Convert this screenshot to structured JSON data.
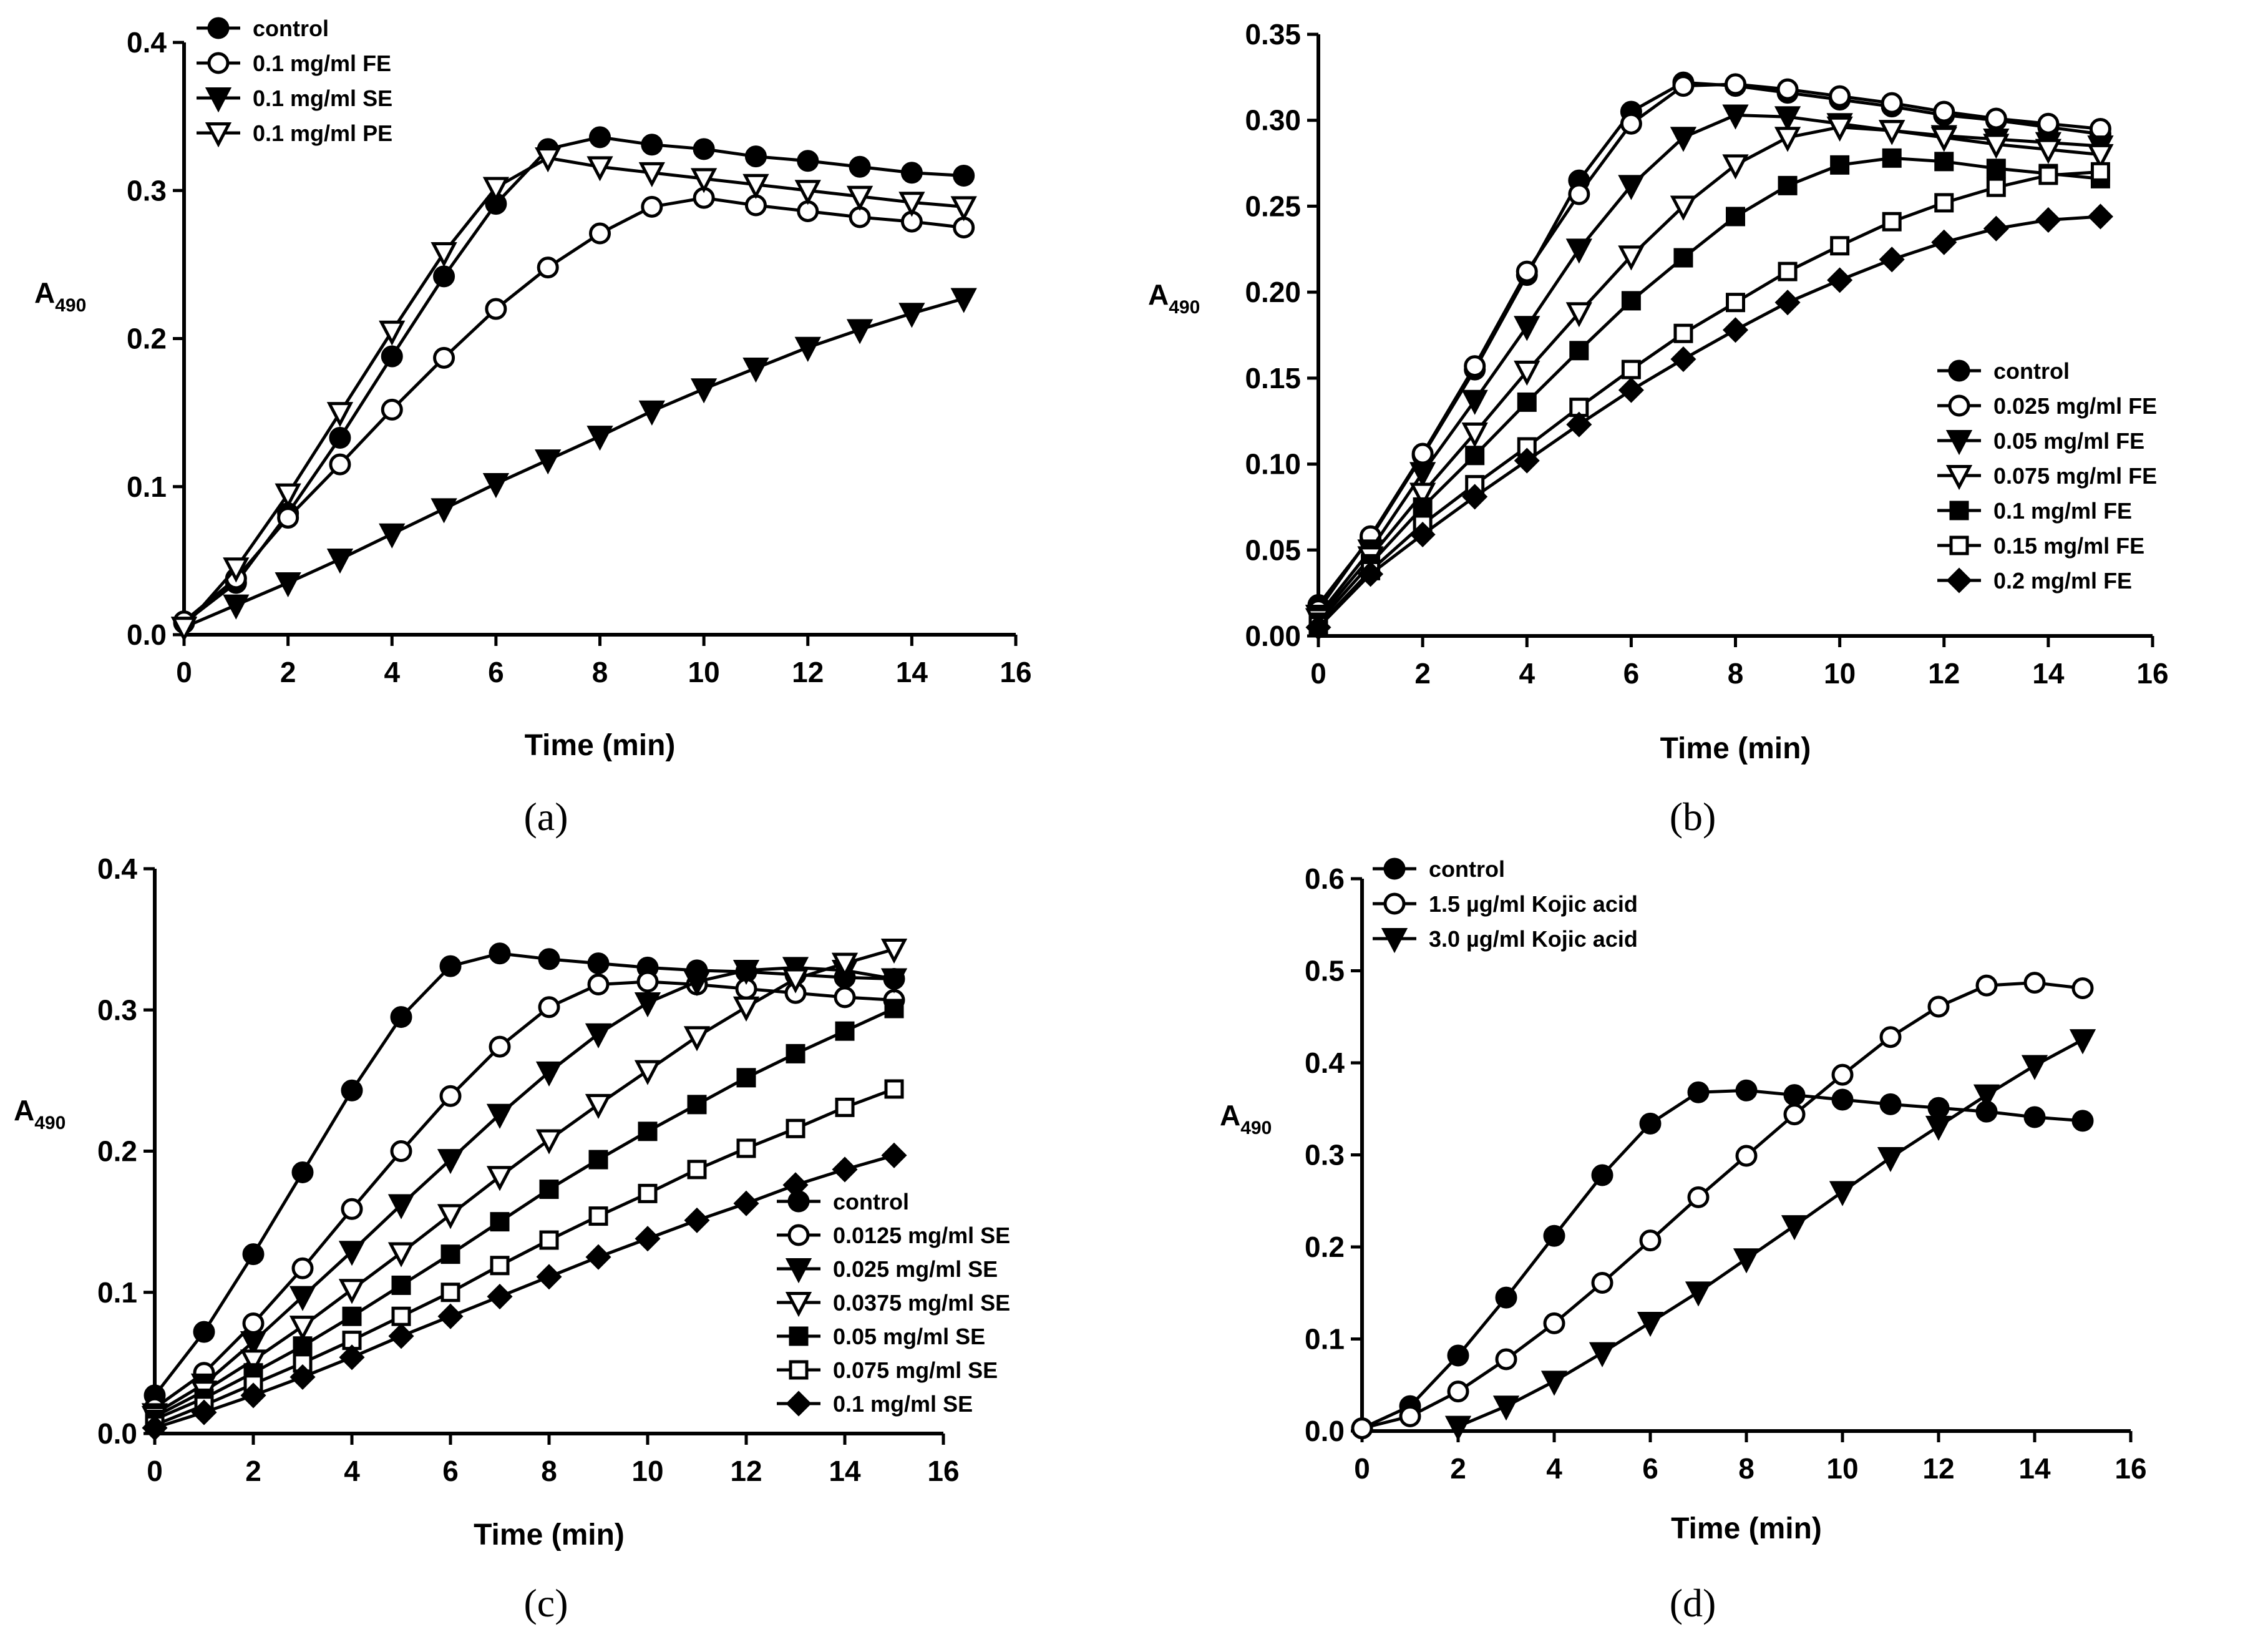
{
  "figure": {
    "panels": [
      "(a)",
      "(b)",
      "(c)",
      "(d)"
    ]
  },
  "chart_data": [
    {
      "type": "line",
      "panel": "(a)",
      "xlabel": "Time (min)",
      "ylabel": "A",
      "ylabel_sub": "490",
      "xlim": [
        0,
        16
      ],
      "ylim": [
        0,
        0.4
      ],
      "xticks": [
        0,
        2,
        4,
        6,
        8,
        10,
        12,
        14,
        16
      ],
      "yticks": [
        0,
        0.1,
        0.2,
        0.3,
        0.4
      ],
      "xtick_labels": [
        "0",
        "2",
        "4",
        "6",
        "8",
        "10",
        "12",
        "14",
        "16"
      ],
      "ytick_labels": [
        "0.0",
        "0.1",
        "0.2",
        "0.3",
        "0.4"
      ],
      "legend_position": "top-left",
      "x": [
        0,
        1,
        2,
        3,
        4,
        5,
        6,
        7,
        8,
        9,
        10,
        11,
        12,
        13,
        14,
        15
      ],
      "series": [
        {
          "name": "control",
          "marker": "circle-filled",
          "values": [
            0.008,
            0.035,
            0.082,
            0.133,
            0.188,
            0.242,
            0.291,
            0.328,
            0.336,
            0.331,
            0.328,
            0.323,
            0.32,
            0.316,
            0.312,
            0.31
          ]
        },
        {
          "name": "0.1 mg/ml FE",
          "marker": "circle-open",
          "values": [
            0.009,
            0.038,
            0.079,
            0.115,
            0.152,
            0.187,
            0.22,
            0.248,
            0.271,
            0.289,
            0.295,
            0.29,
            0.286,
            0.282,
            0.279,
            0.275
          ]
        },
        {
          "name": "0.1 mg/ml SE",
          "marker": "triangle-down-filled",
          "values": [
            0.005,
            0.02,
            0.035,
            0.051,
            0.068,
            0.085,
            0.102,
            0.118,
            0.134,
            0.151,
            0.166,
            0.18,
            0.194,
            0.206,
            0.217,
            0.227
          ]
        },
        {
          "name": "0.1 mg/ml PE",
          "marker": "triangle-down-open",
          "values": [
            0.005,
            0.045,
            0.095,
            0.15,
            0.205,
            0.258,
            0.302,
            0.322,
            0.316,
            0.312,
            0.308,
            0.304,
            0.3,
            0.296,
            0.292,
            0.289
          ]
        }
      ]
    },
    {
      "type": "line",
      "panel": "(b)",
      "xlabel": "Time (min)",
      "ylabel": "A",
      "ylabel_sub": "490",
      "xlim": [
        0,
        16
      ],
      "ylim": [
        0,
        0.35
      ],
      "xticks": [
        0,
        2,
        4,
        6,
        8,
        10,
        12,
        14,
        16
      ],
      "yticks": [
        0,
        0.05,
        0.1,
        0.15,
        0.2,
        0.25,
        0.3,
        0.35
      ],
      "xtick_labels": [
        "0",
        "2",
        "4",
        "6",
        "8",
        "10",
        "12",
        "14",
        "16"
      ],
      "ytick_labels": [
        "0.00",
        "0.05",
        "0.10",
        "0.15",
        "0.20",
        "0.25",
        "0.30",
        "0.35"
      ],
      "legend_position": "bottom-right",
      "x": [
        0,
        1,
        2,
        3,
        4,
        5,
        6,
        7,
        8,
        9,
        10,
        11,
        12,
        13,
        14,
        15
      ],
      "series": [
        {
          "name": "control",
          "marker": "circle-filled",
          "values": [
            0.018,
            0.057,
            0.105,
            0.155,
            0.21,
            0.265,
            0.305,
            0.322,
            0.32,
            0.316,
            0.312,
            0.308,
            0.303,
            0.3,
            0.296,
            0.292
          ]
        },
        {
          "name": "0.025 mg/ml FE",
          "marker": "circle-open",
          "values": [
            0.015,
            0.058,
            0.106,
            0.157,
            0.212,
            0.257,
            0.298,
            0.32,
            0.321,
            0.318,
            0.314,
            0.31,
            0.305,
            0.301,
            0.298,
            0.295
          ]
        },
        {
          "name": "0.05 mg/ml FE",
          "marker": "triangle-down-filled",
          "values": [
            0.012,
            0.05,
            0.095,
            0.137,
            0.18,
            0.225,
            0.262,
            0.29,
            0.303,
            0.302,
            0.298,
            0.294,
            0.291,
            0.289,
            0.287,
            0.285
          ]
        },
        {
          "name": "0.075 mg/ml FE",
          "marker": "triangle-down-open",
          "values": [
            0.01,
            0.046,
            0.083,
            0.118,
            0.154,
            0.188,
            0.221,
            0.25,
            0.274,
            0.29,
            0.296,
            0.294,
            0.29,
            0.286,
            0.283,
            0.28
          ]
        },
        {
          "name": "0.1 mg/ml FE",
          "marker": "square-filled",
          "values": [
            0.008,
            0.042,
            0.075,
            0.105,
            0.136,
            0.166,
            0.195,
            0.22,
            0.244,
            0.262,
            0.274,
            0.278,
            0.276,
            0.272,
            0.269,
            0.266
          ]
        },
        {
          "name": "0.15 mg/ml FE",
          "marker": "square-open",
          "values": [
            0.006,
            0.038,
            0.065,
            0.088,
            0.11,
            0.133,
            0.155,
            0.176,
            0.194,
            0.212,
            0.227,
            0.241,
            0.252,
            0.261,
            0.268,
            0.27
          ]
        },
        {
          "name": "0.2 mg/ml FE",
          "marker": "diamond-filled",
          "values": [
            0.005,
            0.036,
            0.059,
            0.081,
            0.102,
            0.123,
            0.143,
            0.161,
            0.178,
            0.194,
            0.207,
            0.219,
            0.229,
            0.237,
            0.242,
            0.244
          ]
        }
      ]
    },
    {
      "type": "line",
      "panel": "(c)",
      "xlabel": "Time (min)",
      "ylabel": "A",
      "ylabel_sub": "490",
      "xlim": [
        0,
        16
      ],
      "ylim": [
        0,
        0.4
      ],
      "xticks": [
        0,
        2,
        4,
        6,
        8,
        10,
        12,
        14,
        16
      ],
      "yticks": [
        0,
        0.1,
        0.2,
        0.3,
        0.4
      ],
      "xtick_labels": [
        "0",
        "2",
        "4",
        "6",
        "8",
        "10",
        "12",
        "14",
        "16"
      ],
      "ytick_labels": [
        "0.0",
        "0.1",
        "0.2",
        "0.3",
        "0.4"
      ],
      "legend_position": "bottom-right",
      "x": [
        0,
        1,
        2,
        3,
        4,
        5,
        6,
        7,
        8,
        9,
        10,
        11,
        12,
        13,
        14,
        15
      ],
      "series": [
        {
          "name": "control",
          "marker": "circle-filled",
          "values": [
            0.027,
            0.072,
            0.127,
            0.185,
            0.243,
            0.295,
            0.331,
            0.34,
            0.336,
            0.333,
            0.33,
            0.328,
            0.327,
            0.325,
            0.323,
            0.322
          ]
        },
        {
          "name": "0.0125 mg/ml SE",
          "marker": "circle-open",
          "values": [
            0.018,
            0.043,
            0.078,
            0.117,
            0.159,
            0.2,
            0.239,
            0.274,
            0.302,
            0.318,
            0.32,
            0.318,
            0.315,
            0.312,
            0.309,
            0.307
          ]
        },
        {
          "name": "0.025 mg/ml SE",
          "marker": "triangle-down-filled",
          "values": [
            0.014,
            0.035,
            0.065,
            0.097,
            0.129,
            0.162,
            0.194,
            0.226,
            0.256,
            0.283,
            0.305,
            0.32,
            0.328,
            0.33,
            0.328,
            0.322
          ]
        },
        {
          "name": "0.0375 mg/ml SE",
          "marker": "triangle-down-open",
          "values": [
            0.012,
            0.03,
            0.052,
            0.076,
            0.102,
            0.128,
            0.155,
            0.182,
            0.208,
            0.233,
            0.257,
            0.281,
            0.302,
            0.322,
            0.333,
            0.343
          ]
        },
        {
          "name": "0.05 mg/ml SE",
          "marker": "square-filled",
          "values": [
            0.01,
            0.025,
            0.043,
            0.062,
            0.083,
            0.105,
            0.127,
            0.15,
            0.173,
            0.194,
            0.214,
            0.233,
            0.252,
            0.269,
            0.285,
            0.301
          ]
        },
        {
          "name": "0.075 mg/ml SE",
          "marker": "square-open",
          "values": [
            0.006,
            0.02,
            0.035,
            0.05,
            0.066,
            0.083,
            0.1,
            0.119,
            0.137,
            0.154,
            0.17,
            0.187,
            0.202,
            0.216,
            0.231,
            0.244
          ]
        },
        {
          "name": "0.1 mg/ml SE",
          "marker": "diamond-filled",
          "values": [
            0.004,
            0.015,
            0.027,
            0.04,
            0.054,
            0.069,
            0.083,
            0.097,
            0.111,
            0.125,
            0.138,
            0.151,
            0.163,
            0.176,
            0.187,
            0.197
          ]
        }
      ]
    },
    {
      "type": "line",
      "panel": "(d)",
      "xlabel": "Time (min)",
      "ylabel": "A",
      "ylabel_sub": "490",
      "xlim": [
        0,
        16
      ],
      "ylim": [
        0,
        0.6
      ],
      "xticks": [
        0,
        2,
        4,
        6,
        8,
        10,
        12,
        14,
        16
      ],
      "yticks": [
        0,
        0.1,
        0.2,
        0.3,
        0.4,
        0.5,
        0.6
      ],
      "xtick_labels": [
        "0",
        "2",
        "4",
        "6",
        "8",
        "10",
        "12",
        "14",
        "16"
      ],
      "ytick_labels": [
        "0.0",
        "0.1",
        "0.2",
        "0.3",
        "0.4",
        "0.5",
        "0.6"
      ],
      "legend_position": "top-left",
      "x": [
        0,
        1,
        2,
        3,
        4,
        5,
        6,
        7,
        8,
        9,
        10,
        11,
        12,
        13,
        14,
        15
      ],
      "series": [
        {
          "name": "control",
          "marker": "circle-filled",
          "values": [
            0.003,
            0.027,
            0.082,
            0.145,
            0.212,
            0.278,
            0.334,
            0.368,
            0.37,
            0.365,
            0.36,
            0.355,
            0.351,
            0.347,
            0.341,
            0.337
          ]
        },
        {
          "name": "1.5 µg/ml Kojic acid",
          "marker": "circle-open",
          "values": [
            0.003,
            0.016,
            0.043,
            0.078,
            0.117,
            0.161,
            0.207,
            0.254,
            0.299,
            0.344,
            0.387,
            0.428,
            0.461,
            0.484,
            0.487,
            0.481
          ]
        },
        {
          "name": "3.0 µg/ml Kojic acid",
          "marker": "triangle-down-filled",
          "start_index": 2,
          "values": [
            null,
            null,
            0.005,
            0.027,
            0.054,
            0.085,
            0.118,
            0.151,
            0.187,
            0.223,
            0.26,
            0.297,
            0.331,
            0.365,
            0.397,
            0.425
          ]
        }
      ]
    }
  ]
}
